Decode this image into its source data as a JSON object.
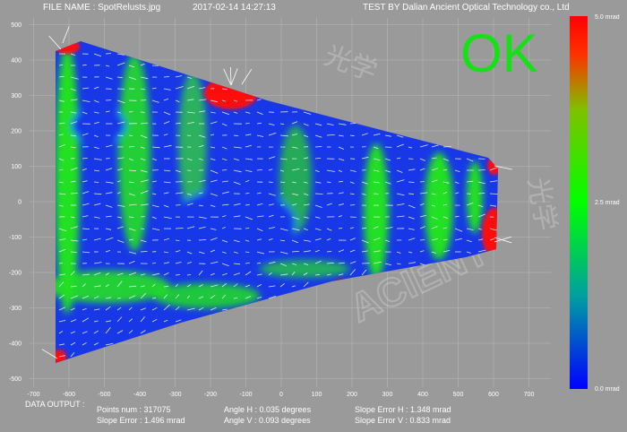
{
  "header": {
    "file_name": "FILE NAME : SpotRelusts.jpg",
    "datetime": "2017-02-14 14:27:13",
    "tested_by": "TEST BY Dalian Ancient Optical Technology co., Ltd"
  },
  "status": {
    "text": "OK",
    "color": "#16e016"
  },
  "watermark": {
    "brand": "ACIENT",
    "chinese": "光学"
  },
  "axes": {
    "x_ticks": [
      "-700",
      "-600",
      "-500",
      "-400",
      "-300",
      "-200",
      "-100",
      "0",
      "100",
      "200",
      "300",
      "400",
      "500",
      "600",
      "700"
    ],
    "y_ticks": [
      "500",
      "400",
      "300",
      "200",
      "100",
      "0",
      "-100",
      "-200",
      "-300",
      "-400",
      "-500"
    ]
  },
  "colorbar": {
    "top": "5.0 mrad",
    "mid": "2.5 mrad",
    "bottom": "0.0 mrad",
    "colors": [
      "#ff0000",
      "#00ff00",
      "#0000ff"
    ]
  },
  "data_output": {
    "title": "DATA OUTPUT :",
    "points_num": "Points num : 317075",
    "slope_error": "Slope Error : 1.496 mrad",
    "angle_h": "Angle H : 0.035 degrees",
    "angle_v": "Angle V : 0.093 degrees",
    "slope_error_h": "Slope Error H : 1.348 mrad",
    "slope_error_v": "Slope Error V : 0.833 mrad"
  },
  "colors": {
    "background": "#9a9a9a",
    "grid": "#b8b8b8",
    "low": "#1030e0",
    "mid": "#22e022",
    "high": "#ff1010"
  }
}
